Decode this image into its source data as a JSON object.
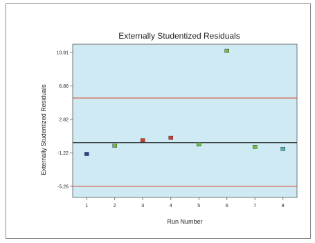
{
  "chart_data": {
    "type": "scatter",
    "title": "Externally Studentized Residuals",
    "xlabel": "Run Number",
    "ylabel": "Externally Studentized Residuals",
    "x_ticks": [
      "1",
      "2",
      "3",
      "4",
      "5",
      "6",
      "7",
      "8"
    ],
    "y_ticks": [
      "10.91",
      "6.86",
      "2.82",
      "-1.22",
      "-5.26"
    ],
    "y_tick_values": [
      10.91,
      6.86,
      2.82,
      -1.22,
      -5.26
    ],
    "xlim": [
      0.5,
      8.5
    ],
    "ylim": [
      -6.6,
      11.9
    ],
    "plot_background": "#cfeaf2",
    "zero_line": {
      "y": 0,
      "color": "#000000"
    },
    "limit_lines": {
      "upper": 5.4,
      "lower": -5.26,
      "color": "#d9472b"
    },
    "points": [
      {
        "x": 1,
        "y": -1.35,
        "color": "#2a3f9a"
      },
      {
        "x": 2,
        "y": -0.35,
        "color": "#6cc04a"
      },
      {
        "x": 3,
        "y": 0.3,
        "color": "#d83a2a"
      },
      {
        "x": 4,
        "y": 0.6,
        "color": "#d83a2a"
      },
      {
        "x": 5,
        "y": -0.2,
        "color": "#6cc04a"
      },
      {
        "x": 6,
        "y": 11.1,
        "color": "#6cc04a"
      },
      {
        "x": 7,
        "y": -0.5,
        "color": "#6cc04a"
      },
      {
        "x": 8,
        "y": -0.75,
        "color": "#4fb7b0"
      }
    ]
  }
}
